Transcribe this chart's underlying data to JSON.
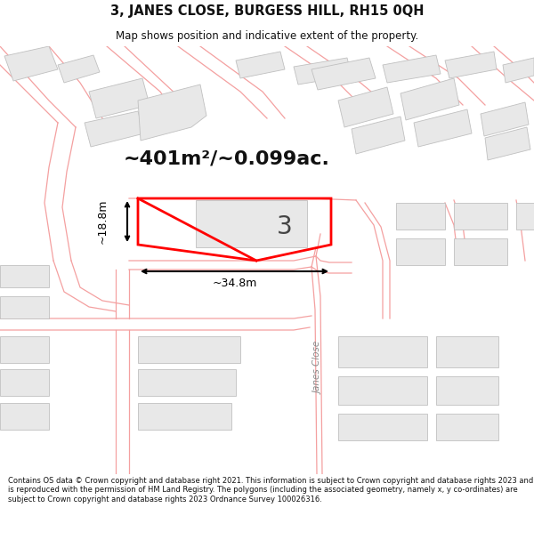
{
  "title_line1": "3, JANES CLOSE, BURGESS HILL, RH15 0QH",
  "title_line2": "Map shows position and indicative extent of the property.",
  "footer_text": "Contains OS data © Crown copyright and database right 2021. This information is subject to Crown copyright and database rights 2023 and is reproduced with the permission of HM Land Registry. The polygons (including the associated geometry, namely x, y co-ordinates) are subject to Crown copyright and database rights 2023 Ordnance Survey 100026316.",
  "area_text": "~401m²/~0.099ac.",
  "property_number": "3",
  "dim_width": "~34.8m",
  "dim_height": "~18.8m",
  "map_bg": "#ffffff",
  "header_bg": "#ffffff",
  "footer_bg": "#ffffff",
  "road_label": "Janes Close",
  "highlight_color": "#ff0000",
  "road_line_color": "#f4a0a0",
  "building_fill": "#e8e8e8",
  "building_edge": "#c0c0c0",
  "dim_color": "#000000"
}
